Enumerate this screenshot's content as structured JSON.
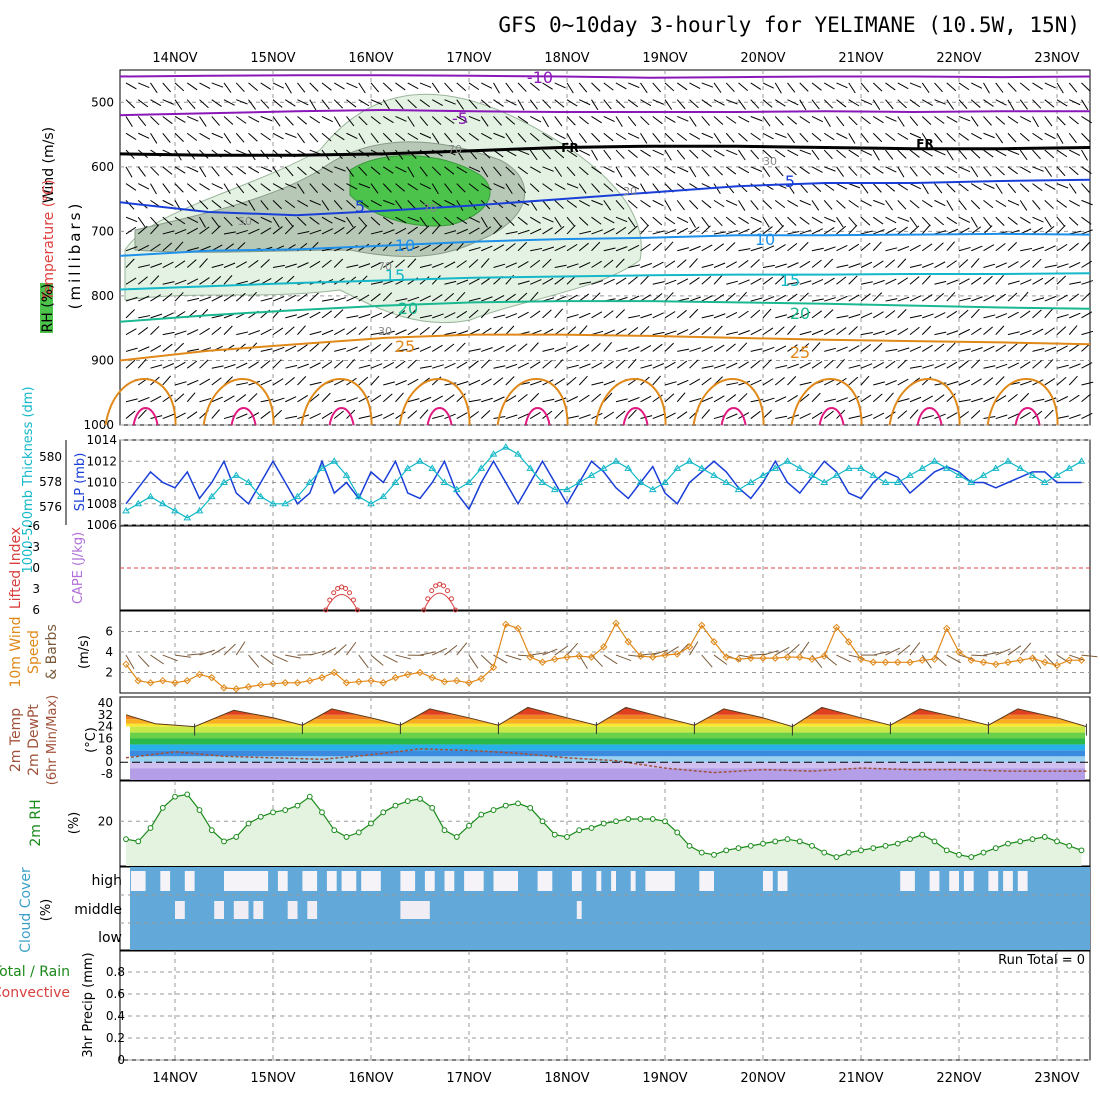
{
  "title": "GFS 0~10day 3-hourly for YELIMANE (10.5W, 15N)",
  "dates": [
    "14NOV",
    "15NOV",
    "16NOV",
    "17NOV",
    "18NOV",
    "19NOV",
    "20NOV",
    "21NOV",
    "22NOV",
    "23NOV"
  ],
  "colors": {
    "purple": "#8a18b8",
    "blue": "#1a3fd8",
    "lightblue": "#1e90ea",
    "cyan": "#14b8c8",
    "teal": "#1ab890",
    "orange": "#e08818",
    "magenta": "#e01880",
    "rhgreen": "#4cc44c",
    "cloud": "#62a8d8"
  },
  "chart_data": [
    {
      "type": "line",
      "panel": "upper-air",
      "ylabel": "(millibars)",
      "side_labels": [
        "Wind (m/s)",
        "Temperature (°C)",
        "RH (%)"
      ],
      "yticks": [
        500,
        600,
        700,
        800,
        900,
        1000
      ],
      "ylim": [
        450,
        1000
      ],
      "isotherm_labels": [
        "-10",
        "-5",
        "FR",
        "FR",
        "5",
        "5",
        "10",
        "10",
        "15",
        "15",
        "20",
        "20",
        "25",
        "25"
      ],
      "rh_labels": [
        "70",
        "30",
        "50",
        "70",
        "30",
        "70",
        "30"
      ],
      "series": [
        {
          "level": -10,
          "color": "purple",
          "p": [
            460,
            459,
            458,
            458,
            459,
            460,
            462,
            461,
            460,
            460,
            461,
            460
          ]
        },
        {
          "level": -5,
          "color": "purple",
          "p": [
            520,
            517,
            514,
            512,
            514,
            515,
            515,
            515,
            514,
            515,
            514,
            514
          ]
        },
        {
          "level": 0,
          "color": "black",
          "p": [
            580,
            582,
            582,
            580,
            575,
            570,
            568,
            568,
            570,
            572,
            572,
            570
          ]
        },
        {
          "level": 5,
          "color": "blue",
          "p": [
            655,
            670,
            675,
            668,
            660,
            650,
            640,
            630,
            625,
            625,
            622,
            620
          ]
        },
        {
          "level": 10,
          "color": "lightblue",
          "p": [
            738,
            730,
            728,
            722,
            716,
            712,
            710,
            706,
            706,
            705,
            704,
            705
          ]
        },
        {
          "level": 15,
          "color": "cyan",
          "p": [
            790,
            785,
            780,
            776,
            772,
            770,
            768,
            767,
            767,
            766,
            766,
            765
          ]
        },
        {
          "level": 20,
          "color": "teal",
          "p": [
            840,
            830,
            822,
            815,
            810,
            808,
            808,
            810,
            812,
            815,
            818,
            820
          ]
        },
        {
          "level": 25,
          "color": "orange",
          "p": [
            900,
            885,
            875,
            865,
            860,
            860,
            862,
            865,
            868,
            870,
            872,
            875
          ]
        }
      ]
    },
    {
      "type": "line",
      "panel": "slp-thickness",
      "ylabel": "SLP (mb)",
      "ylabel2": "1000-500mb Thickness (dm)",
      "yticks": [
        1006,
        1008,
        1010,
        1012,
        1014
      ],
      "yticks2": [
        576,
        578,
        580
      ],
      "ylim": [
        1006,
        1014
      ],
      "slp": [
        1008,
        1009.5,
        1011,
        1010,
        1009.5,
        1011,
        1008.5,
        1010,
        1012,
        1009,
        1008,
        1010,
        1012,
        1010,
        1008,
        1009,
        1012,
        1009,
        1010,
        1008.5,
        1011,
        1010,
        1012,
        1009,
        1008.5,
        1010,
        1012,
        1009,
        1007.5,
        1010,
        1012,
        1010,
        1008,
        1010,
        1012,
        1010,
        1008,
        1010,
        1012,
        1011,
        1009.5,
        1008.5,
        1010,
        1011.5,
        1009,
        1008,
        1010,
        1011,
        1012,
        1011,
        1009.5,
        1008.5,
        1010,
        1012,
        1010,
        1009,
        1010.5,
        1012,
        1011,
        1009,
        1008.5,
        1010,
        1011,
        1010.5,
        1009,
        1010,
        1011,
        1011.5,
        1011,
        1010,
        1010,
        1009.5,
        1010,
        1010.5,
        1011,
        1011,
        1010,
        1010,
        1010,
        1010.5,
        1010,
        1010,
        1010.5,
        1011.5,
        1011,
        1010.5,
        1009.5,
        1009.5,
        1010,
        1010.5,
        1010
      ],
      "thickness": [
        576,
        576.5,
        577,
        576.5,
        576,
        575.5,
        576,
        577,
        578,
        578.5,
        578,
        577,
        576.5,
        576.5,
        577,
        578,
        579,
        579.5,
        578.5,
        577,
        576.5,
        577,
        578,
        579,
        579.5,
        579,
        578,
        577.5,
        578,
        579,
        580,
        580.5,
        580,
        579,
        578,
        577.5,
        577.5,
        578,
        578.5,
        579,
        579.5,
        579,
        578,
        577.5,
        578,
        579,
        579.5,
        579,
        578.5,
        578,
        577.5,
        578,
        578.5,
        579,
        579.5,
        579,
        578.5,
        578,
        578.5,
        579,
        579,
        578.5,
        578,
        578,
        578.5,
        579,
        579.5,
        579,
        578.5,
        578,
        578.5,
        579,
        579.5,
        579,
        578.5,
        578,
        578.5,
        579,
        579.5,
        579,
        578.5,
        578,
        578,
        578.5,
        579,
        579,
        578.5,
        578,
        578,
        578,
        578
      ]
    },
    {
      "type": "line",
      "panel": "cape-li",
      "ylabel": "CAPE (J/kg)",
      "ylabel2": "Lifted Index",
      "yticks": [
        "-6",
        "-3",
        "0",
        "3",
        "6"
      ],
      "ylim": [
        6,
        -6
      ],
      "li": [
        [
          15.6,
          5.2
        ],
        [
          15.7,
          3.0
        ],
        [
          15.8,
          5.2
        ],
        [
          16.6,
          5.0
        ],
        [
          16.7,
          2.6
        ],
        [
          16.8,
          5.0
        ]
      ]
    },
    {
      "type": "line",
      "panel": "wind10m",
      "ylabel": "(m/s)",
      "side_labels": [
        "10m Wind",
        "Speed",
        "& Barbs"
      ],
      "yticks": [
        2,
        4,
        6
      ],
      "ylim": [
        0,
        8
      ],
      "speed": [
        2.8,
        1.2,
        1.0,
        1.2,
        1.0,
        1.2,
        1.8,
        1.5,
        0.5,
        0.4,
        0.6,
        0.8,
        0.9,
        1.0,
        1.0,
        1.2,
        1.5,
        2.0,
        1.0,
        1.1,
        1.2,
        1.0,
        1.5,
        1.8,
        2.0,
        1.5,
        1.1,
        1.2,
        1.0,
        1.4,
        2.5,
        6.7,
        6.3,
        3.5,
        3.0,
        3.3,
        3.5,
        3.6,
        3.5,
        4.5,
        6.8,
        5.0,
        3.6,
        3.5,
        3.7,
        3.8,
        4.5,
        6.6,
        5.0,
        3.5,
        3.3,
        3.4,
        3.4,
        3.4,
        3.5,
        3.5,
        3.3,
        3.6,
        6.4,
        5.0,
        3.3,
        3.0,
        3.0,
        3.0,
        3.0,
        3.2,
        3.3,
        6.3,
        4.0,
        3.2,
        3.0,
        2.8,
        3.0,
        3.2,
        3.4,
        3.0,
        2.7,
        3.2,
        3.2,
        3.4,
        3.0,
        3.2,
        3.0,
        3.2,
        3.2,
        3.0,
        3.3,
        3.0,
        3.2,
        3.0,
        2.9
      ]
    },
    {
      "type": "line",
      "panel": "temp2m",
      "ylabel": "(°C)",
      "side_labels": [
        "2m Temp",
        "2m DewPt",
        "(6hr Min/Max)"
      ],
      "yticks": [
        -8,
        0,
        8,
        16,
        24,
        32,
        40
      ],
      "ylim": [
        -12,
        44
      ],
      "temp": [
        [
          13.5,
          32
        ],
        [
          13.8,
          26
        ],
        [
          14.2,
          24
        ],
        [
          14.6,
          35
        ],
        [
          15.0,
          30
        ],
        [
          15.3,
          25
        ],
        [
          15.6,
          36
        ],
        [
          16.0,
          30
        ],
        [
          16.3,
          25
        ],
        [
          16.6,
          36
        ],
        [
          17.0,
          30
        ],
        [
          17.3,
          25
        ],
        [
          17.6,
          37
        ],
        [
          18.0,
          30
        ],
        [
          18.3,
          25
        ],
        [
          18.6,
          37
        ],
        [
          19.0,
          30
        ],
        [
          19.3,
          25
        ],
        [
          19.6,
          36
        ],
        [
          20.0,
          30
        ],
        [
          20.3,
          24
        ],
        [
          20.6,
          37
        ],
        [
          21.0,
          30
        ],
        [
          21.3,
          25
        ],
        [
          21.6,
          36
        ],
        [
          22.0,
          30
        ],
        [
          22.3,
          25
        ],
        [
          22.6,
          36
        ],
        [
          23.0,
          30
        ],
        [
          23.3,
          24
        ]
      ],
      "dewpt": [
        [
          13.5,
          3
        ],
        [
          14.0,
          7
        ],
        [
          14.5,
          4
        ],
        [
          15.0,
          3
        ],
        [
          15.5,
          2
        ],
        [
          16.0,
          5
        ],
        [
          16.5,
          9
        ],
        [
          17.0,
          8
        ],
        [
          17.5,
          6
        ],
        [
          18.0,
          3
        ],
        [
          18.5,
          1
        ],
        [
          19.0,
          -4
        ],
        [
          19.5,
          -7
        ],
        [
          20.0,
          -5
        ],
        [
          20.5,
          -6
        ],
        [
          21.0,
          -4
        ],
        [
          21.5,
          -5
        ],
        [
          22.0,
          -5
        ],
        [
          22.5,
          -6
        ],
        [
          23.0,
          -6
        ],
        [
          23.3,
          -6
        ]
      ]
    },
    {
      "type": "area",
      "panel": "rh2m",
      "ylabel": "(%)",
      "side_label": "2m RH",
      "yticks": [
        20
      ],
      "ylim": [
        0,
        38
      ],
      "rh": [
        12,
        11,
        17,
        26,
        31,
        32,
        25,
        16,
        11,
        13,
        19,
        22,
        24,
        25,
        27,
        31,
        24,
        16,
        13,
        15,
        19,
        24,
        27,
        29,
        30,
        26,
        16,
        13,
        18,
        23,
        25,
        27,
        28,
        26,
        20,
        14,
        13,
        16,
        17,
        19,
        20,
        21,
        21,
        21,
        20,
        15,
        9,
        6,
        5,
        7,
        8,
        9,
        10,
        11,
        12,
        11,
        9,
        6,
        4,
        6,
        7,
        8,
        9,
        10,
        12,
        14,
        11,
        7,
        5,
        4,
        6,
        8,
        10,
        11,
        12,
        13,
        11,
        9,
        7,
        6,
        8,
        10,
        11,
        12,
        13,
        12,
        10,
        8,
        7,
        6,
        9,
        11,
        12,
        14,
        15,
        16
      ]
    },
    {
      "type": "heatmap",
      "panel": "cloud",
      "ylabel": "(%)",
      "side_label": "Cloud Cover",
      "rows": [
        "high",
        "middle",
        "low"
      ],
      "high_gaps": [
        [
          13.55,
          13.7
        ],
        [
          13.85,
          13.95
        ],
        [
          14.1,
          14.2
        ],
        [
          14.5,
          14.95
        ],
        [
          15.05,
          15.15
        ],
        [
          15.3,
          15.45
        ],
        [
          15.55,
          15.65
        ],
        [
          15.7,
          15.85
        ],
        [
          15.9,
          16.1
        ],
        [
          16.3,
          16.45
        ],
        [
          16.55,
          16.65
        ],
        [
          16.75,
          16.85
        ],
        [
          16.95,
          17.15
        ],
        [
          17.25,
          17.5
        ],
        [
          17.7,
          17.85
        ],
        [
          18.05,
          18.15
        ],
        [
          18.3,
          18.35
        ],
        [
          18.45,
          18.5
        ],
        [
          18.65,
          18.7
        ],
        [
          18.8,
          19.1
        ],
        [
          19.35,
          19.5
        ],
        [
          20.0,
          20.1
        ],
        [
          20.15,
          20.25
        ],
        [
          21.4,
          21.55
        ],
        [
          21.7,
          21.8
        ],
        [
          21.9,
          22.0
        ],
        [
          22.05,
          22.15
        ],
        [
          22.3,
          22.4
        ],
        [
          22.45,
          22.55
        ],
        [
          22.6,
          22.7
        ]
      ],
      "mid_gaps": [
        [
          14.0,
          14.1
        ],
        [
          14.4,
          14.5
        ],
        [
          14.6,
          14.75
        ],
        [
          14.8,
          14.9
        ],
        [
          15.15,
          15.25
        ],
        [
          15.35,
          15.45
        ],
        [
          16.3,
          16.6
        ],
        [
          18.1,
          18.15
        ]
      ]
    },
    {
      "type": "bar",
      "panel": "precip",
      "ylabel": "3hr Precip (mm)",
      "side_labels": [
        "Total / Rain",
        "Convective"
      ],
      "yticks": [
        "0",
        "0.2",
        "0.4",
        "0.6",
        "0.8"
      ],
      "ylim": [
        0,
        1
      ],
      "values": [],
      "run_total": "Run Total = 0"
    }
  ]
}
